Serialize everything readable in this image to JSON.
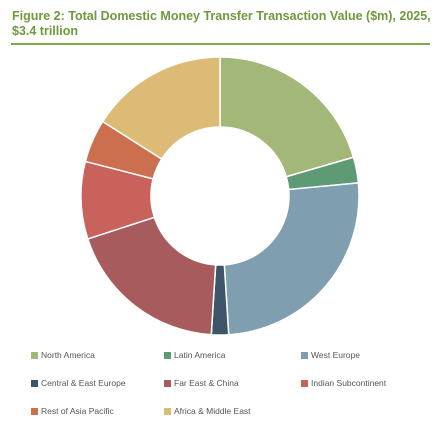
{
  "chart_data": {
    "type": "pie",
    "variant": "donut",
    "title": "Figure 2: Total Domestic Money Transfer Transaction Value ($m), 2025, $3.4 trillion",
    "categories": [
      "North America",
      "Latin America",
      "West Europe",
      "Central & East Europe",
      "Far East & China",
      "Indian Subcontinent",
      "Rest of Asia Pacific",
      "Africa & Middle East"
    ],
    "values": [
      20.5,
      3.0,
      25.5,
      2.0,
      19.0,
      9.0,
      5.0,
      16.0
    ],
    "colors": [
      "#a3b878",
      "#5e9a73",
      "#7f9fb0",
      "#3e5468",
      "#a85b5d",
      "#c8625b",
      "#cc6f4e",
      "#dcbb77"
    ],
    "legend_position": "bottom"
  }
}
